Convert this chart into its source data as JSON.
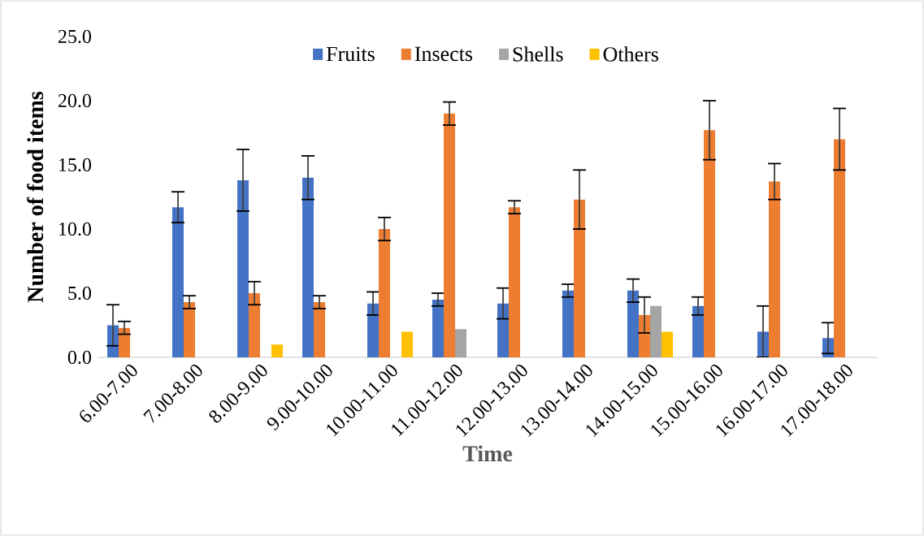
{
  "chart_data": {
    "type": "bar",
    "categories": [
      "6.00-7.00",
      "7.00-8.00",
      "8.00-9.00",
      "9.00-10.00",
      "10.00-11.00",
      "11.00-12.00",
      "12.00-13.00",
      "13.00-14.00",
      "14.00-15.00",
      "15.00-16.00",
      "16.00-17.00",
      "17.00-18.00"
    ],
    "series": [
      {
        "name": "Fruits",
        "color": "#4472c4",
        "values": [
          2.5,
          11.7,
          13.8,
          14.0,
          4.2,
          4.5,
          4.2,
          5.2,
          5.2,
          4.0,
          2.0,
          1.5
        ],
        "errors": [
          1.6,
          1.2,
          2.4,
          1.7,
          0.9,
          0.5,
          1.2,
          0.5,
          0.9,
          0.7,
          2.0,
          1.2
        ]
      },
      {
        "name": "Insects",
        "color": "#ed7d31",
        "values": [
          2.3,
          4.3,
          5.0,
          4.3,
          10.0,
          19.0,
          11.7,
          12.3,
          3.3,
          17.7,
          13.7,
          17.0
        ],
        "errors": [
          0.5,
          0.5,
          0.9,
          0.5,
          0.9,
          0.9,
          0.5,
          2.3,
          1.4,
          2.3,
          1.4,
          2.4
        ]
      },
      {
        "name": "Shells",
        "color": "#a5a5a5",
        "values": [
          null,
          null,
          null,
          null,
          null,
          2.2,
          null,
          null,
          4.0,
          null,
          null,
          null
        ]
      },
      {
        "name": "Others",
        "color": "#ffc000",
        "values": [
          null,
          null,
          1.0,
          null,
          2.0,
          null,
          null,
          null,
          2.0,
          null,
          null,
          null
        ]
      }
    ],
    "ylim": [
      0,
      25
    ],
    "yticks": [
      {
        "value": 0,
        "label": "0.0"
      },
      {
        "value": 5,
        "label": "5.0"
      },
      {
        "value": 10,
        "label": "10.0"
      },
      {
        "value": 15,
        "label": "15.0"
      },
      {
        "value": 20,
        "label": "20.0"
      },
      {
        "value": 25,
        "label": "25.0"
      }
    ],
    "xlabel": "Time",
    "ylabel": "Number of food items",
    "legend": "top"
  }
}
